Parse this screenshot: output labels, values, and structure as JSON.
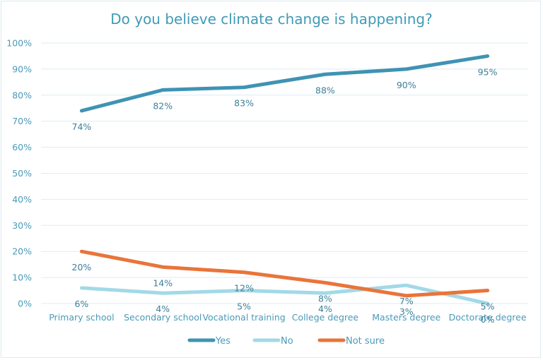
{
  "chart_data": {
    "type": "line",
    "title": "Do you believe climate change is happening?",
    "xlabel": "",
    "ylabel": "",
    "categories": [
      "Primary school",
      "Secondary school",
      "Vocational training",
      "College degree",
      "Masters degree",
      "Doctorate degree"
    ],
    "series": [
      {
        "name": "Yes",
        "color": "#3f93b3",
        "values": [
          74,
          82,
          83,
          88,
          90,
          95
        ],
        "labels": [
          "74%",
          "82%",
          "83%",
          "88%",
          "90%",
          "95%"
        ]
      },
      {
        "name": "No",
        "color": "#a2d9e7",
        "values": [
          6,
          4,
          5,
          4,
          7,
          0
        ],
        "labels": [
          "6%",
          "4%",
          "5%",
          "4%",
          "7%",
          "0%"
        ]
      },
      {
        "name": "Not sure",
        "color": "#e9743a",
        "values": [
          20,
          14,
          12,
          8,
          3,
          5
        ],
        "labels": [
          "20%",
          "14%",
          "12%",
          "8%",
          "3%",
          "5%"
        ]
      }
    ],
    "ylim": [
      0,
      100
    ],
    "yticks": [
      "0%",
      "10%",
      "20%",
      "30%",
      "40%",
      "50%",
      "60%",
      "70%",
      "80%",
      "90%",
      "100%"
    ],
    "grid": true,
    "legend_position": "bottom"
  }
}
